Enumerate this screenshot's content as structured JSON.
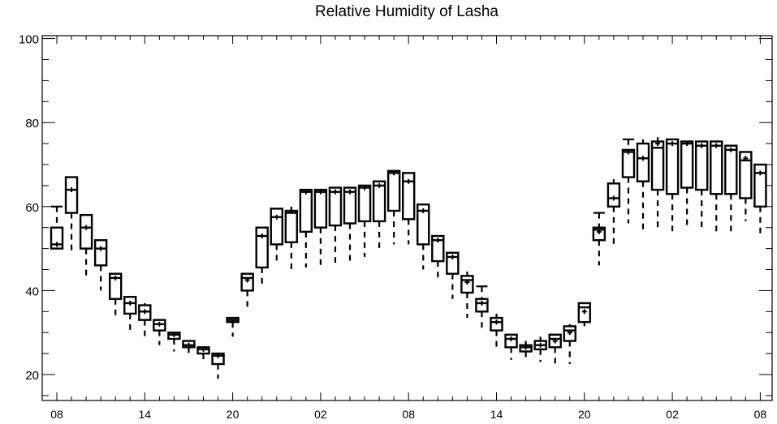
{
  "chart_data": {
    "type": "boxplot",
    "title": "Relative Humidity of Lasha",
    "xlabel": "",
    "ylabel": "",
    "ylim": [
      14,
      101
    ],
    "y_ticks": [
      20,
      40,
      60,
      80,
      100
    ],
    "x_tick_labels": [
      "08",
      "14",
      "20",
      "02",
      "08",
      "14",
      "20",
      "02",
      "08"
    ],
    "x_tick_positions": [
      0,
      6,
      12,
      18,
      24,
      30,
      36,
      42,
      48
    ],
    "grid": false,
    "series": [
      {
        "x": 0,
        "whisker_low": 50,
        "q1": 50,
        "median": 51,
        "mean": 51,
        "q3": 55,
        "whisker_high": 60
      },
      {
        "x": 1,
        "whisker_low": 49,
        "q1": 58.5,
        "median": 64,
        "mean": 64,
        "q3": 67,
        "whisker_high": 67
      },
      {
        "x": 2,
        "whisker_low": 43,
        "q1": 50,
        "median": 55,
        "mean": 55,
        "q3": 58,
        "whisker_high": 58
      },
      {
        "x": 3,
        "whisker_low": 40,
        "q1": 46,
        "median": 50,
        "mean": 50,
        "q3": 52,
        "whisker_high": 52
      },
      {
        "x": 4,
        "whisker_low": 33,
        "q1": 38,
        "median": 43,
        "mean": 43,
        "q3": 44,
        "whisker_high": 44
      },
      {
        "x": 5,
        "whisker_low": 30,
        "q1": 34.5,
        "median": 37,
        "mean": 37,
        "q3": 38.5,
        "whisker_high": 38.5
      },
      {
        "x": 6,
        "whisker_low": 29,
        "q1": 33,
        "median": 35,
        "mean": 35,
        "q3": 36.5,
        "whisker_high": 37
      },
      {
        "x": 7,
        "whisker_low": 27,
        "q1": 30.5,
        "median": 32,
        "mean": 32,
        "q3": 33,
        "whisker_high": 33
      },
      {
        "x": 8,
        "whisker_low": 25.5,
        "q1": 28.5,
        "median": 29.5,
        "mean": 29.5,
        "q3": 30,
        "whisker_high": 30
      },
      {
        "x": 9,
        "whisker_low": 24,
        "q1": 26.5,
        "median": 27,
        "mean": 27,
        "q3": 28,
        "whisker_high": 28
      },
      {
        "x": 10,
        "whisker_low": 22.5,
        "q1": 25,
        "median": 26,
        "mean": 26,
        "q3": 26.5,
        "whisker_high": 26.5
      },
      {
        "x": 11,
        "whisker_low": 19,
        "q1": 22.5,
        "median": 24.5,
        "mean": 24.5,
        "q3": 25,
        "whisker_high": 25
      },
      {
        "x": 12,
        "whisker_low": 29,
        "q1": 32.5,
        "median": 33,
        "mean": 32.5,
        "q3": 33.5,
        "whisker_high": 33.5
      },
      {
        "x": 13,
        "whisker_low": 35.5,
        "q1": 40,
        "median": 43,
        "mean": 42.5,
        "q3": 44,
        "whisker_high": 44
      },
      {
        "x": 14,
        "whisker_low": 41,
        "q1": 45.5,
        "median": 53,
        "mean": 53,
        "q3": 55,
        "whisker_high": 55
      },
      {
        "x": 15,
        "whisker_low": 46.5,
        "q1": 51,
        "median": 57.5,
        "mean": 57.5,
        "q3": 59.5,
        "whisker_high": 59.5
      },
      {
        "x": 16,
        "whisker_low": 45,
        "q1": 51.5,
        "median": 58.5,
        "mean": 59,
        "q3": 59,
        "whisker_high": 60
      },
      {
        "x": 17,
        "whisker_low": 45.5,
        "q1": 54,
        "median": 63.5,
        "mean": 63.5,
        "q3": 64,
        "whisker_high": 64
      },
      {
        "x": 18,
        "whisker_low": 46,
        "q1": 55,
        "median": 63.5,
        "mean": 63.5,
        "q3": 64,
        "whisker_high": 64
      },
      {
        "x": 19,
        "whisker_low": 46.5,
        "q1": 55.5,
        "median": 63.5,
        "mean": 63.5,
        "q3": 64.5,
        "whisker_high": 64.5
      },
      {
        "x": 20,
        "whisker_low": 47,
        "q1": 56,
        "median": 63.5,
        "mean": 63.5,
        "q3": 64.5,
        "whisker_high": 64.5
      },
      {
        "x": 21,
        "whisker_low": 48,
        "q1": 56.5,
        "median": 64.5,
        "mean": 64.5,
        "q3": 65,
        "whisker_high": 65
      },
      {
        "x": 22,
        "whisker_low": 49.5,
        "q1": 56.5,
        "median": 65,
        "mean": 65,
        "q3": 66,
        "whisker_high": 66
      },
      {
        "x": 23,
        "whisker_low": 51,
        "q1": 59,
        "median": 68,
        "mean": 68,
        "q3": 68.5,
        "whisker_high": 68.5
      },
      {
        "x": 24,
        "whisker_low": 51,
        "q1": 57,
        "median": 66,
        "mean": 66,
        "q3": 68,
        "whisker_high": 68
      },
      {
        "x": 25,
        "whisker_low": 45,
        "q1": 51,
        "median": 59,
        "mean": 59,
        "q3": 60.5,
        "whisker_high": 60.5
      },
      {
        "x": 26,
        "whisker_low": 42,
        "q1": 47,
        "median": 52,
        "mean": 52,
        "q3": 53,
        "whisker_high": 53
      },
      {
        "x": 27,
        "whisker_low": 38,
        "q1": 44,
        "median": 48,
        "mean": 48,
        "q3": 49,
        "whisker_high": 49
      },
      {
        "x": 28,
        "whisker_low": 33.5,
        "q1": 39.5,
        "median": 42.5,
        "mean": 42,
        "q3": 43.5,
        "whisker_high": 44.5
      },
      {
        "x": 29,
        "whisker_low": 30,
        "q1": 35,
        "median": 37,
        "mean": 37,
        "q3": 38,
        "whisker_high": 41
      },
      {
        "x": 30,
        "whisker_low": 26.5,
        "q1": 30.5,
        "median": 32.5,
        "mean": 32.5,
        "q3": 33.5,
        "whisker_high": 34.5
      },
      {
        "x": 31,
        "whisker_low": 23.5,
        "q1": 26.5,
        "median": 28.5,
        "mean": 28.5,
        "q3": 29.5,
        "whisker_high": 29.5
      },
      {
        "x": 32,
        "whisker_low": 23,
        "q1": 25.5,
        "median": 26.5,
        "mean": 26.5,
        "q3": 27,
        "whisker_high": 28
      },
      {
        "x": 33,
        "whisker_low": 23,
        "q1": 26,
        "median": 27,
        "mean": 27,
        "q3": 28,
        "whisker_high": 29
      },
      {
        "x": 34,
        "whisker_low": 22.5,
        "q1": 26.5,
        "median": 28.5,
        "mean": 28,
        "q3": 29.5,
        "whisker_high": 29.5
      },
      {
        "x": 35,
        "whisker_low": 22.5,
        "q1": 28,
        "median": 30.5,
        "mean": 30,
        "q3": 31.5,
        "whisker_high": 32
      },
      {
        "x": 36,
        "whisker_low": 31.5,
        "q1": 32.5,
        "median": 36,
        "mean": 35,
        "q3": 37,
        "whisker_high": 37
      },
      {
        "x": 37,
        "whisker_low": 46,
        "q1": 52,
        "median": 54.5,
        "mean": 54,
        "q3": 55,
        "whisker_high": 58.5
      },
      {
        "x": 38,
        "whisker_low": 51,
        "q1": 60,
        "median": 62,
        "mean": 62,
        "q3": 65.5,
        "whisker_high": 66.5
      },
      {
        "x": 39,
        "whisker_low": 56,
        "q1": 67,
        "median": 73,
        "mean": 73,
        "q3": 73.5,
        "whisker_high": 76
      },
      {
        "x": 40,
        "whisker_low": 54.5,
        "q1": 66,
        "median": 71.5,
        "mean": 71.5,
        "q3": 75,
        "whisker_high": 76
      },
      {
        "x": 41,
        "whisker_low": 54,
        "q1": 64,
        "median": 74,
        "mean": 75,
        "q3": 75.5,
        "whisker_high": 76.5
      },
      {
        "x": 42,
        "whisker_low": 53,
        "q1": 63,
        "median": 75,
        "mean": 75,
        "q3": 76,
        "whisker_high": 76
      },
      {
        "x": 43,
        "whisker_low": 54.5,
        "q1": 64.5,
        "median": 75,
        "mean": 75,
        "q3": 75.5,
        "whisker_high": 75.5
      },
      {
        "x": 44,
        "whisker_low": 54.5,
        "q1": 64,
        "median": 74.5,
        "mean": 74.5,
        "q3": 75.5,
        "whisker_high": 75.5
      },
      {
        "x": 45,
        "whisker_low": 53,
        "q1": 63,
        "median": 74.5,
        "mean": 74.5,
        "q3": 75.5,
        "whisker_high": 75.5
      },
      {
        "x": 46,
        "whisker_low": 53.5,
        "q1": 63,
        "median": 73.5,
        "mean": 73.5,
        "q3": 74.5,
        "whisker_high": 74.5
      },
      {
        "x": 47,
        "whisker_low": 56.5,
        "q1": 62,
        "median": 71,
        "mean": 71.5,
        "q3": 73,
        "whisker_high": 73
      },
      {
        "x": 48,
        "whisker_low": 53,
        "q1": 60,
        "median": 68,
        "mean": 68,
        "q3": 70,
        "whisker_high": 70
      }
    ]
  }
}
